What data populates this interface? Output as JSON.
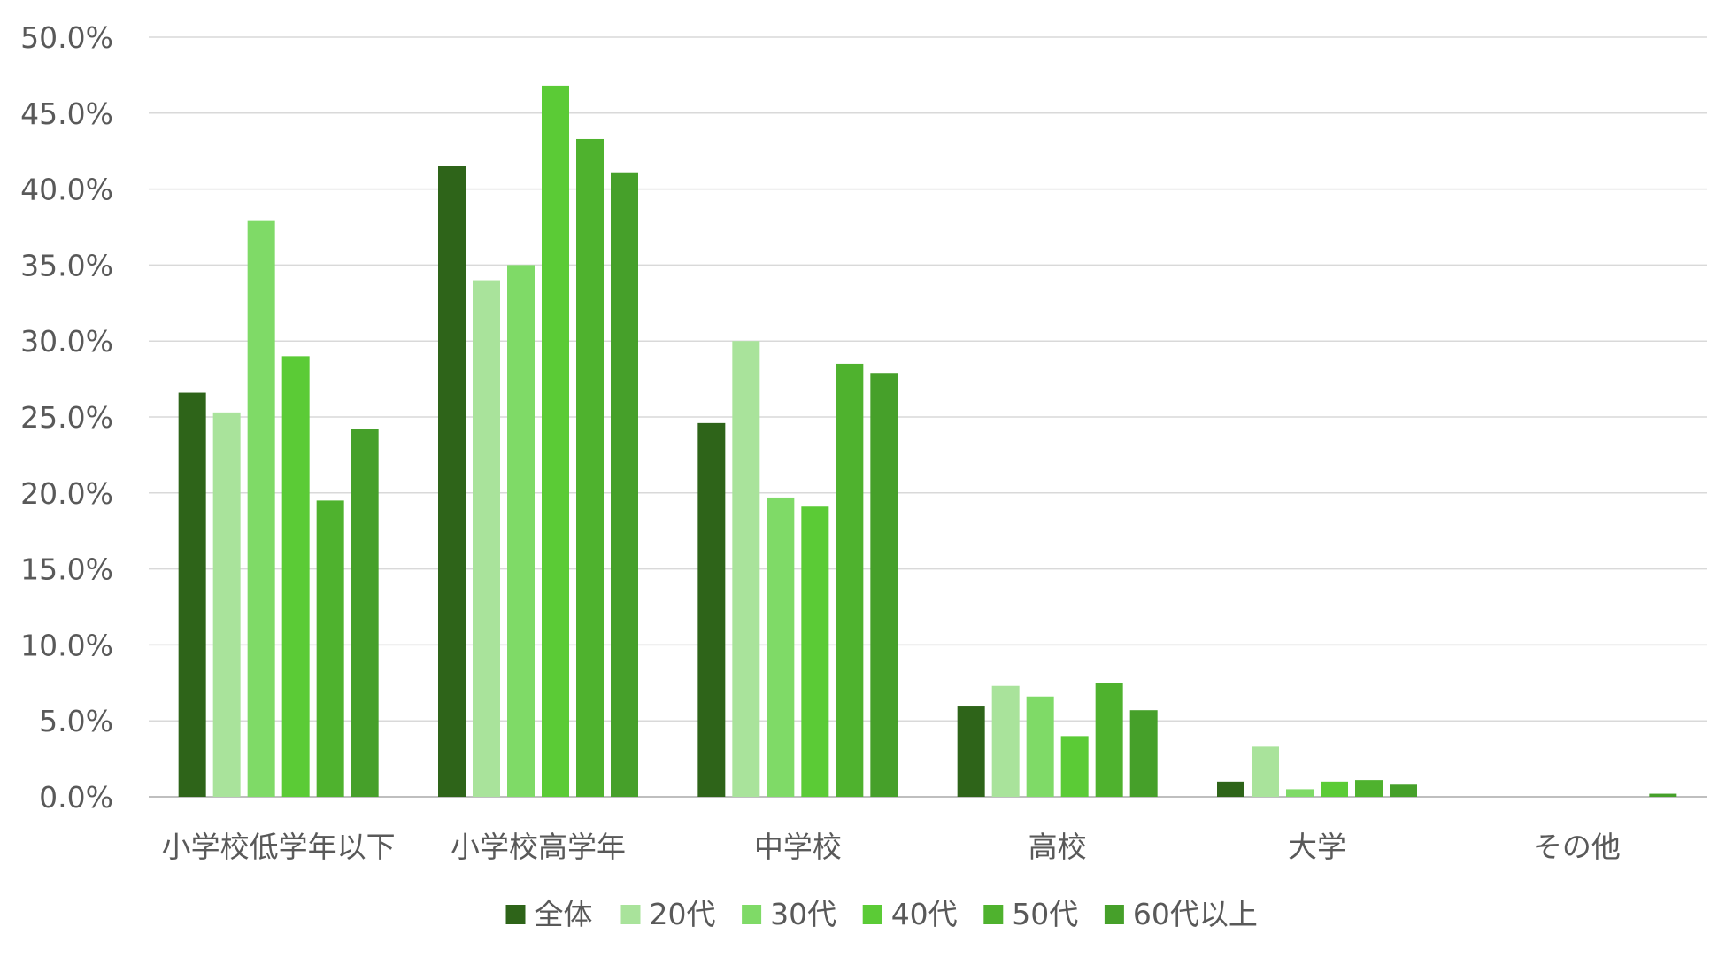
{
  "chart_data": {
    "type": "bar",
    "title": "",
    "xlabel": "",
    "ylabel": "",
    "ylim": [
      0,
      50
    ],
    "y_ticks": [
      "0.0%",
      "5.0%",
      "10.0%",
      "15.0%",
      "20.0%",
      "25.0%",
      "30.0%",
      "35.0%",
      "40.0%",
      "45.0%",
      "50.0%"
    ],
    "y_tick_values": [
      0,
      5,
      10,
      15,
      20,
      25,
      30,
      35,
      40,
      45,
      50
    ],
    "grid": true,
    "legend_position": "bottom",
    "categories": [
      "小学校低学年以下",
      "小学校高学年",
      "中学校",
      "高校",
      "大学",
      "その他"
    ],
    "series": [
      {
        "name": "全体",
        "color": "#2e6419",
        "values": [
          26.6,
          41.5,
          24.6,
          6.0,
          1.0,
          0.0
        ]
      },
      {
        "name": "20代",
        "color": "#a9e39b",
        "values": [
          25.3,
          34.0,
          30.0,
          7.3,
          3.3,
          0.0
        ]
      },
      {
        "name": "30代",
        "color": "#7fda67",
        "values": [
          37.9,
          35.0,
          19.7,
          6.6,
          0.5,
          0.0
        ]
      },
      {
        "name": "40代",
        "color": "#5bcb36",
        "values": [
          29.0,
          46.8,
          19.1,
          4.0,
          1.0,
          0.0
        ]
      },
      {
        "name": "50代",
        "color": "#4fb22e",
        "values": [
          19.5,
          43.3,
          28.5,
          7.5,
          1.1,
          0.0
        ]
      },
      {
        "name": "60代以上",
        "color": "#46a02a",
        "values": [
          24.2,
          41.1,
          27.9,
          5.7,
          0.8,
          0.2
        ]
      }
    ]
  }
}
